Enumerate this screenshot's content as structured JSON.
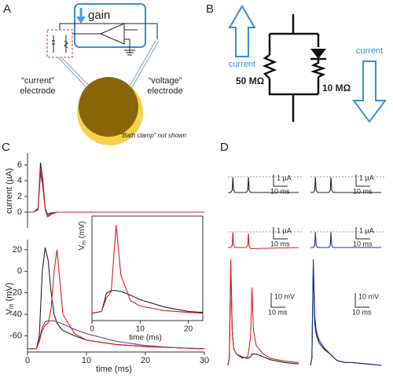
{
  "panel_a": {
    "label": "A",
    "gain": "gain",
    "current_electrode": [
      "“current”",
      "electrode"
    ],
    "voltage_electrode": [
      "“voltage”",
      "electrode"
    ],
    "bath_note": "“Bath clamp” not shown"
  },
  "panel_b": {
    "label": "B",
    "current_up": "current",
    "current_down": "current",
    "resistor_1": "50 MΩ",
    "resistor_2": "10 MΩ"
  },
  "panel_c": {
    "label": "C",
    "current_plot": {
      "ylabel": "current (µA)",
      "xlim": [
        0,
        30
      ],
      "ylim": [
        -2,
        7.5
      ],
      "yticks": [
        0,
        2,
        4,
        6
      ],
      "x": [
        0,
        1,
        1.8,
        2.2,
        2.6,
        3,
        3.4,
        4,
        5,
        6,
        30
      ],
      "series": [
        {
          "color": "#222222",
          "values": [
            0,
            0,
            0.5,
            6.3,
            4,
            0.5,
            -0.3,
            -0.1,
            0,
            0,
            0
          ]
        },
        {
          "color": "#7b3fa0",
          "values": [
            0,
            0,
            0.4,
            5.0,
            3.2,
            0.4,
            -0.4,
            -0.2,
            0,
            0,
            0
          ]
        },
        {
          "color": "#d42020",
          "values": [
            0,
            0,
            0.3,
            5.5,
            3.5,
            0.3,
            -0.6,
            -0.3,
            0,
            0,
            0
          ]
        }
      ]
    },
    "voltage_plot": {
      "ylabel": {
        "main": "V",
        "sub": "m",
        "unit": " (mV)"
      },
      "xlabel": "time (ms)",
      "xlim": [
        0,
        30
      ],
      "ylim": [
        -75,
        25
      ],
      "xticks": [
        0,
        10,
        20,
        30
      ],
      "yticks": [
        -60,
        -40,
        -20,
        0,
        20
      ],
      "x": [
        0,
        1.5,
        2,
        2.5,
        3,
        3.5,
        4,
        4.5,
        5,
        5.5,
        6,
        8,
        10,
        15,
        20,
        25,
        30
      ],
      "series": [
        {
          "color": "#222222",
          "values": [
            -72,
            -72,
            -60,
            0,
            22,
            10,
            -20,
            -40,
            -48,
            -52,
            -55,
            -60,
            -64,
            -68,
            -70,
            -71,
            -72
          ]
        },
        {
          "color": "#7b3fa0",
          "values": [
            -72,
            -72,
            -64,
            -52,
            -47,
            -46,
            -46,
            -46,
            -47,
            -48,
            -49,
            -54,
            -58,
            -65,
            -69,
            -71,
            -72
          ]
        },
        {
          "color": "#d42020",
          "values": [
            -72,
            -72,
            -65,
            -55,
            -50,
            -48,
            -35,
            0,
            20,
            -10,
            -40,
            -58,
            -64,
            -68,
            -70,
            -71,
            -72
          ]
        }
      ]
    },
    "inset": {
      "ylabel": {
        "main": "V",
        "sub": "m",
        "unit": " (mV)"
      },
      "xlabel": "time (ms)",
      "xlim": [
        0,
        23
      ],
      "ylim": [
        -80,
        35
      ],
      "xticks": [
        0,
        10,
        20
      ],
      "x": [
        0,
        2,
        3,
        4,
        5,
        6,
        8,
        10,
        15,
        20,
        23
      ],
      "series": [
        {
          "color": "#222222",
          "values": [
            -72,
            -70,
            -50,
            -47,
            -47,
            -48,
            -52,
            -57,
            -65,
            -70,
            -71
          ]
        },
        {
          "color": "#d42020",
          "values": [
            -72,
            -70,
            -55,
            -48,
            25,
            -30,
            -58,
            -64,
            -69,
            -71,
            -72
          ]
        }
      ]
    }
  },
  "panel_d": {
    "label": "D",
    "current_x": [
      0,
      2,
      3,
      3.5,
      4,
      5,
      13,
      14,
      14.5,
      15,
      16,
      50
    ],
    "voltage_x": [
      0,
      1,
      2,
      3,
      4,
      6,
      10,
      14,
      16,
      17,
      18,
      20,
      25,
      30,
      40,
      50
    ],
    "left": {
      "current_1": {
        "color": "#222222",
        "values": [
          0,
          0,
          0.2,
          1.3,
          0.2,
          0,
          0,
          0.2,
          1.3,
          0.2,
          0,
          0
        ]
      },
      "current_2": {
        "color": "#d42020",
        "values": [
          0,
          0,
          0.2,
          1.3,
          0.2,
          0,
          0,
          0.2,
          1.2,
          0.1,
          -0.1,
          0
        ]
      },
      "voltage": [
        {
          "color": "#222222",
          "values": [
            0,
            5,
            72,
            25,
            12,
            8,
            6,
            5,
            6,
            8,
            8,
            8,
            6,
            4,
            2,
            1
          ]
        },
        {
          "color": "#d42020",
          "values": [
            0,
            5,
            75,
            25,
            12,
            8,
            5,
            6,
            20,
            55,
            25,
            14,
            8,
            5,
            3,
            2
          ]
        }
      ]
    },
    "right": {
      "current_1": {
        "color": "#222222",
        "values": [
          0,
          0,
          0.2,
          1.3,
          0.2,
          0,
          0,
          0.2,
          1.3,
          0.2,
          0,
          0
        ]
      },
      "current_2": {
        "color": "#1a2f9a",
        "values": [
          0,
          0,
          0.2,
          1.3,
          0.2,
          0,
          0,
          0.2,
          1.3,
          0.2,
          0,
          0
        ]
      },
      "voltage": [
        {
          "color": "#222222",
          "values": [
            0,
            5,
            70,
            30,
            22,
            16,
            11,
            8,
            6,
            5,
            4,
            3,
            2,
            2,
            1,
            0
          ]
        },
        {
          "color": "#1a2f9a",
          "values": [
            0,
            5,
            75,
            35,
            25,
            18,
            12,
            8,
            6,
            5,
            4,
            3,
            2,
            2,
            1,
            0
          ]
        }
      ]
    },
    "scale_bars": [
      {
        "amp": "1 µA",
        "time": "10 ms"
      },
      {
        "amp": "1 µA",
        "time": "10 ms"
      },
      {
        "amp": "1 µA",
        "time": "10 ms"
      },
      {
        "amp": "1 µA",
        "time": "10 ms"
      },
      {
        "amp": "10 mV",
        "time": "10 ms"
      },
      {
        "amp": "10 mV",
        "time": "10 ms"
      }
    ]
  }
}
